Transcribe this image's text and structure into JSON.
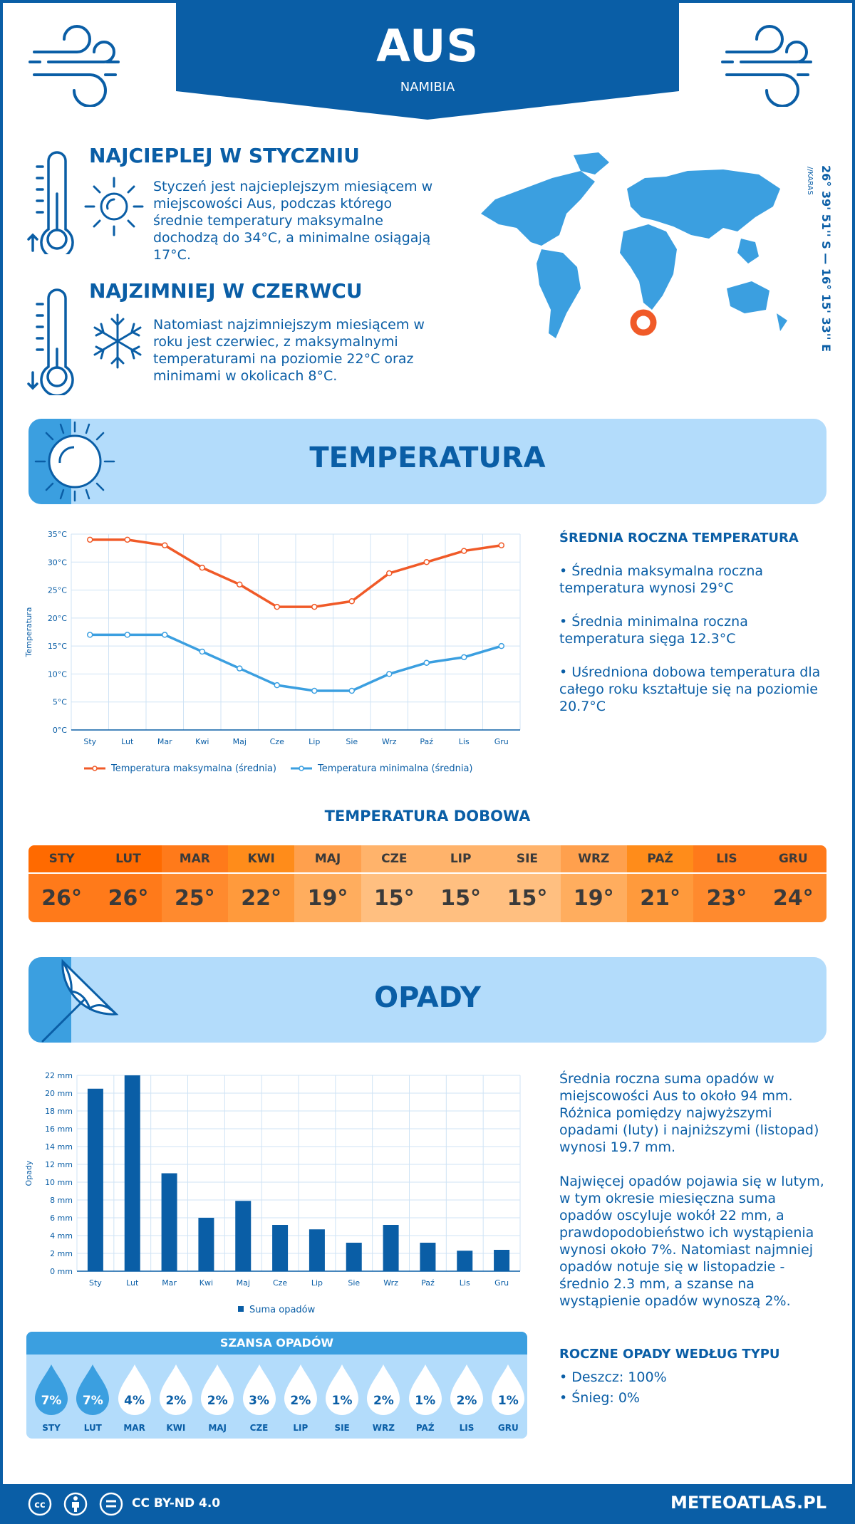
{
  "header": {
    "city": "AUS",
    "country": "NAMIBIA"
  },
  "hottest": {
    "title": "NAJCIEPLEJ W STYCZNIU",
    "text": "Styczeń jest najcieplejszym miesiącem w miejscowości Aus, podczas którego średnie temperatury maksymalne dochodzą do 34°C, a minimalne osiągają 17°C."
  },
  "coldest": {
    "title": "NAJZIMNIEJ W CZERWCU",
    "text": "Natomiast najzimniejszym miesiącem w roku jest czerwiec, z maksymalnymi temperaturami na poziomie 22°C oraz minimami w okolicach 8°C."
  },
  "coords": {
    "text": "26° 39' 51'' S — 16° 15' 33'' E",
    "region": "//KARAS"
  },
  "temp_section": {
    "title": "TEMPERATURA",
    "side_title": "ŚREDNIA ROCZNA TEMPERATURA",
    "bullets": [
      "• Średnia maksymalna roczna temperatura wynosi 29°C",
      "• Średnia minimalna roczna temperatura sięga 12.3°C",
      "• Uśredniona dobowa temperatura dla całego roku kształtuje się na poziomie 20.7°C"
    ]
  },
  "daily_temp": {
    "title": "TEMPERATURA DOBOWA",
    "months": [
      "STY",
      "LUT",
      "MAR",
      "KWI",
      "MAJ",
      "CZE",
      "LIP",
      "SIE",
      "WRZ",
      "PAŹ",
      "LIS",
      "GRU"
    ],
    "values": [
      "26°",
      "26°",
      "25°",
      "22°",
      "19°",
      "15°",
      "15°",
      "15°",
      "19°",
      "21°",
      "23°",
      "24°"
    ],
    "head_colors": [
      "#ff6a00",
      "#ff6a00",
      "#ff7a1a",
      "#ff8c1a",
      "#ffa04d",
      "#ffb36b",
      "#ffb36b",
      "#ffb36b",
      "#ffa04d",
      "#ff8c1a",
      "#ff7a1a",
      "#ff7a1a"
    ],
    "val_colors": [
      "#ff7a1a",
      "#ff7a1a",
      "#ff8a2e",
      "#ff9a3c",
      "#ffad5e",
      "#ffbf80",
      "#ffbf80",
      "#ffbf80",
      "#ffad5e",
      "#ff9a3c",
      "#ff8a2e",
      "#ff8a2e"
    ]
  },
  "precip_section": {
    "title": "OPADY",
    "text1": "Średnia roczna suma opadów w miejscowości Aus to około 94 mm. Różnica pomiędzy najwyższymi opadami (luty) i najniższymi (listopad) wynosi 19.7 mm.",
    "text2": "Najwięcej opadów pojawia się w lutym, w tym okresie miesięczna suma opadów oscyluje wokół 22 mm, a prawdopodobieństwo ich wystąpienia wynosi około 7%. Natomiast najmniej opadów notuje się w listopadzie - średnio 2.3 mm, a szanse na wystąpienie opadów wynoszą 2%.",
    "type_title": "ROCZNE OPADY WEDŁUG TYPU",
    "type_items": [
      "• Deszcz: 100%",
      "• Śnieg: 0%"
    ]
  },
  "chance": {
    "title": "SZANSA OPADÓW",
    "months": [
      "STY",
      "LUT",
      "MAR",
      "KWI",
      "MAJ",
      "CZE",
      "LIP",
      "SIE",
      "WRZ",
      "PAŹ",
      "LIS",
      "GRU"
    ],
    "values": [
      "7%",
      "7%",
      "4%",
      "2%",
      "2%",
      "3%",
      "2%",
      "1%",
      "2%",
      "1%",
      "2%",
      "1%"
    ],
    "filled": [
      true,
      true,
      false,
      false,
      false,
      false,
      false,
      false,
      false,
      false,
      false,
      false
    ]
  },
  "footer": {
    "license": "CC BY-ND 4.0",
    "site": "METEOATLAS.PL"
  },
  "chart_data": [
    {
      "type": "line",
      "categories": [
        "Sty",
        "Lut",
        "Mar",
        "Kwi",
        "Maj",
        "Cze",
        "Lip",
        "Sie",
        "Wrz",
        "Paź",
        "Lis",
        "Gru"
      ],
      "series": [
        {
          "name": "Temperatura maksymalna (średnia)",
          "values": [
            34,
            34,
            33,
            29,
            26,
            22,
            22,
            23,
            28,
            30,
            32,
            33
          ],
          "color": "#f05a28"
        },
        {
          "name": "Temperatura minimalna (średnia)",
          "values": [
            17,
            17,
            17,
            14,
            11,
            8,
            7,
            7,
            10,
            12,
            13,
            15
          ],
          "color": "#3b9fe0"
        }
      ],
      "ylabel": "Temperatura",
      "yticks": [
        "0°C",
        "5°C",
        "10°C",
        "15°C",
        "20°C",
        "25°C",
        "30°C",
        "35°C"
      ],
      "ylim": [
        0,
        35
      ],
      "grid": true,
      "legend": "bottom"
    },
    {
      "type": "bar",
      "categories": [
        "Sty",
        "Lut",
        "Mar",
        "Kwi",
        "Maj",
        "Cze",
        "Lip",
        "Sie",
        "Wrz",
        "Paź",
        "Lis",
        "Gru"
      ],
      "series": [
        {
          "name": "Suma opadów",
          "values": [
            20.5,
            22,
            11,
            6,
            7.9,
            5.2,
            4.7,
            3.2,
            5.2,
            3.2,
            2.3,
            2.4
          ],
          "color": "#0a5ea6"
        }
      ],
      "ylabel": "Opady",
      "yticks": [
        "0 mm",
        "2 mm",
        "4 mm",
        "6 mm",
        "8 mm",
        "10 mm",
        "12 mm",
        "14 mm",
        "16 mm",
        "18 mm",
        "20 mm",
        "22 mm"
      ],
      "ylim": [
        0,
        22
      ],
      "grid": true,
      "legend": "bottom"
    }
  ]
}
